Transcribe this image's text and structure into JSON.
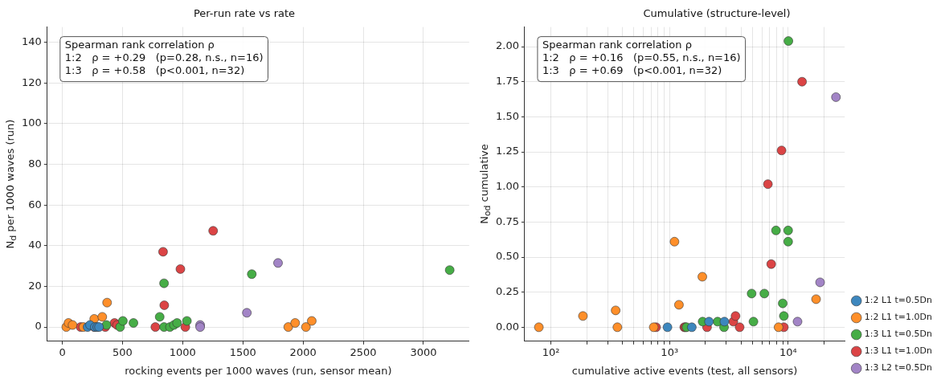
{
  "chart_data": [
    {
      "type": "scatter",
      "title": "Per-run rate vs rate",
      "xlabel": "rocking events per 1000 waves (run, sensor mean)",
      "ylabel": "N$_{d}$ per 1000 waves (run)",
      "xlim": [
        -125,
        3380
      ],
      "xticks": [
        0,
        500,
        1000,
        1500,
        2000,
        2500,
        3000
      ],
      "ylim": [
        -7,
        147.5
      ],
      "yticks": [
        0,
        20,
        40,
        60,
        80,
        100,
        120,
        140
      ],
      "grid": true,
      "legend": false,
      "marker": "circle",
      "annotations": [
        "Spearman rank correlation ρ",
        "1:2   ρ = +0.29   (p=0.28, n.s., n=16)",
        "1:3   ρ = +0.58   (p<0.001, n=32)"
      ],
      "series": [
        {
          "color": "#3d87be",
          "x": [
            210,
            230,
            270,
            290,
            305
          ],
          "values": [
            0,
            1,
            0,
            0,
            0
          ]
        },
        {
          "color": "#ff8f2a",
          "x": [
            33,
            51,
            85,
            175,
            265,
            332,
            372,
            1877,
            1934,
            2024,
            2072
          ],
          "values": [
            0,
            2,
            1,
            0,
            4,
            5,
            12,
            0,
            2,
            0,
            3
          ]
        },
        {
          "color": "#46ad46",
          "x": [
            367,
            480,
            503,
            591,
            809,
            845,
            845,
            894,
            927,
            953,
            1035,
            1574,
            3218
          ],
          "values": [
            1,
            0,
            3,
            2,
            5,
            21.5,
            0,
            0,
            1,
            2,
            3,
            26,
            28
          ]
        },
        {
          "color": "#db4445",
          "x": [
            152,
            265,
            357,
            434,
            455,
            773,
            837,
            847,
            981,
            1022,
            1253
          ],
          "values": [
            0,
            0,
            0,
            2,
            1,
            0,
            37,
            10.7,
            28.5,
            0,
            47.3
          ]
        },
        {
          "color": "#a284c6",
          "x": [
            1145,
            1145,
            1533,
            1792
          ],
          "values": [
            1,
            0,
            7,
            31.5
          ]
        }
      ]
    },
    {
      "type": "scatter",
      "title": "Cumulative (structure-level)",
      "xlabel": "cumulative active events (test, all sensors)",
      "ylabel": "N$_{od}$ cumulative",
      "log": "x",
      "xlim": [
        60,
        30000
      ],
      "xticks": [
        {
          "value": 100,
          "label": "10²"
        },
        {
          "value": 200,
          "label": null
        },
        {
          "value": 300,
          "label": null
        },
        {
          "value": 400,
          "label": null
        },
        {
          "value": 500,
          "label": null
        },
        {
          "value": 600,
          "label": null
        },
        {
          "value": 700,
          "label": null
        },
        {
          "value": 800,
          "label": null
        },
        {
          "value": 900,
          "label": null
        },
        {
          "value": 1000,
          "label": "10³"
        },
        {
          "value": 2000,
          "label": null
        },
        {
          "value": 3000,
          "label": null
        },
        {
          "value": 4000,
          "label": null
        },
        {
          "value": 5000,
          "label": null
        },
        {
          "value": 6000,
          "label": null
        },
        {
          "value": 7000,
          "label": null
        },
        {
          "value": 8000,
          "label": null
        },
        {
          "value": 9000,
          "label": null
        },
        {
          "value": 10000,
          "label": "10⁴"
        },
        {
          "value": 20000,
          "label": null
        }
      ],
      "ylim": [
        -0.1,
        2.14
      ],
      "yticks": [
        {
          "value": 0,
          "label": "0.00"
        },
        {
          "value": 0.25,
          "label": "0.25"
        },
        {
          "value": 0.5,
          "label": "0.50"
        },
        {
          "value": 0.75,
          "label": "0.75"
        },
        {
          "value": 1,
          "label": "1.00"
        },
        {
          "value": 1.25,
          "label": "1.25"
        },
        {
          "value": 1.5,
          "label": "1.50"
        },
        {
          "value": 1.75,
          "label": "1.75"
        },
        {
          "value": 2,
          "label": "2.00"
        }
      ],
      "grid": true,
      "legend": "right",
      "marker": "circle",
      "annotations": [
        "Spearman rank correlation ρ",
        "1:2   ρ = +0.16   (p=0.55, n.s., n=16)",
        "1:3   ρ = +0.69   (p<0.001, n=32)"
      ],
      "series": [
        {
          "name": "1:2 L1 t=0.5Dn",
          "color": "#3d87be",
          "x": [
            960,
            1540,
            2150,
            2900
          ],
          "values": [
            0,
            0,
            0.04,
            0.04
          ]
        },
        {
          "name": "1:2 L1 t=1.0Dn",
          "color": "#ff8f2a",
          "x": [
            79,
            186,
            351,
            363,
            735,
            1100,
            1200,
            1890,
            8300,
            17200
          ],
          "values": [
            0,
            0.08,
            0.12,
            0,
            0,
            0.61,
            0.16,
            0.36,
            0,
            0.2
          ]
        },
        {
          "name": "1:3 L1 t=0.5Dn",
          "color": "#46ad46",
          "x": [
            1390,
            1900,
            2540,
            2880,
            4920,
            5100,
            6300,
            7900,
            9000,
            9200,
            10000,
            10000,
            10050
          ],
          "values": [
            0,
            0.04,
            0.04,
            0,
            0.24,
            0.04,
            0.24,
            0.69,
            0.17,
            0.08,
            0.69,
            0.61,
            2.04
          ]
        },
        {
          "name": "1:3 L1 t=1.0Dn",
          "color": "#db4445",
          "x": [
            770,
            1330,
            1360,
            2070,
            3450,
            3600,
            3900,
            6750,
            7200,
            8800,
            9200,
            13100
          ],
          "values": [
            0,
            0,
            0,
            0,
            0.04,
            0.08,
            0,
            1.02,
            0.45,
            1.26,
            0,
            1.75
          ]
        },
        {
          "name": "1:3 L2 t=0.5Dn",
          "color": "#a284c6",
          "x": [
            12000,
            18600,
            25300
          ],
          "values": [
            0.04,
            0.32,
            1.64
          ]
        }
      ]
    }
  ]
}
